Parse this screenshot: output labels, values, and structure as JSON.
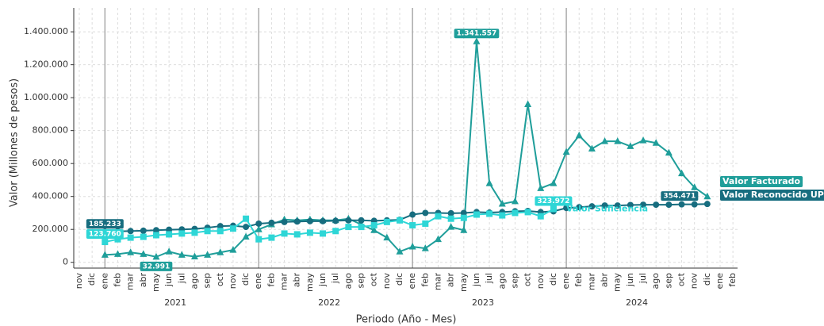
{
  "chart_data": {
    "type": "line",
    "y_label": "Valor (Millones de pesos)",
    "x_label": "Periodo (Año - Mes)",
    "categories": [
      "nov",
      "dic",
      "ene",
      "feb",
      "mar",
      "abr",
      "may",
      "jun",
      "jul",
      "ago",
      "sep",
      "oct",
      "nov",
      "dic",
      "ene",
      "feb",
      "mar",
      "abr",
      "may",
      "jun",
      "jul",
      "ago",
      "sep",
      "oct",
      "nov",
      "dic",
      "ene",
      "feb",
      "mar",
      "abr",
      "may",
      "jun",
      "jul",
      "ago",
      "sep",
      "oct",
      "nov",
      "dic",
      "ene",
      "feb",
      "mar",
      "abr",
      "may",
      "jun",
      "jul",
      "ago",
      "sep",
      "oct",
      "nov",
      "dic",
      "ene",
      "feb"
    ],
    "year_labels": [
      "2021",
      "2022",
      "2023",
      "2024"
    ],
    "ylim": [
      -35000,
      1545000
    ],
    "yticks": [
      0,
      {
        "value": 200000,
        "label": "200.000"
      },
      {
        "value": 400000,
        "label": "400.000"
      },
      {
        "value": 600000,
        "label": "600.000"
      },
      {
        "value": 800000,
        "label": "800.000"
      },
      {
        "value": 1000000,
        "label": "1.000.000"
      },
      {
        "value": 1200000,
        "label": "1.200.000"
      },
      {
        "value": 1400000,
        "label": "1.400.000"
      }
    ],
    "grid": true,
    "series": [
      {
        "name": "Valor Facturado",
        "color": "#1f9e9a",
        "marker": "triangle",
        "values": [
          null,
          null,
          45000,
          50000,
          60000,
          50000,
          32991,
          65000,
          45000,
          35000,
          45000,
          60000,
          75000,
          155000,
          200000,
          230000,
          260000,
          255000,
          260000,
          255000,
          255000,
          265000,
          230000,
          195000,
          150000,
          65000,
          95000,
          85000,
          140000,
          215000,
          195000,
          1341557,
          480000,
          355000,
          370000,
          960000,
          450000,
          480000,
          670000,
          770000,
          690000,
          735000,
          735000,
          705000,
          740000,
          725000,
          665000,
          540000,
          455000,
          400000,
          null,
          null
        ],
        "value_labels": [
          null,
          null,
          null,
          null,
          null,
          null,
          "32.991",
          null,
          null,
          null,
          null,
          null,
          null,
          null,
          null,
          null,
          null,
          null,
          null,
          null,
          null,
          null,
          null,
          null,
          null,
          null,
          null,
          null,
          null,
          null,
          null,
          "1.341.557",
          null,
          null,
          null,
          null,
          null,
          null,
          null,
          null,
          null,
          null,
          null,
          null,
          null,
          null,
          null,
          null,
          null,
          null,
          null,
          null
        ]
      },
      {
        "name": "Valor Reconocido UPC",
        "color": "#176d7f",
        "marker": "circle",
        "values": [
          null,
          null,
          185233,
          188000,
          190000,
          192000,
          195000,
          198000,
          200000,
          203000,
          210000,
          220000,
          222000,
          215000,
          235000,
          240000,
          245000,
          248000,
          250000,
          250000,
          252000,
          255000,
          255000,
          252000,
          255000,
          258000,
          290000,
          300000,
          300000,
          298000,
          300000,
          305000,
          302000,
          305000,
          310000,
          312000,
          305000,
          310000,
          330000,
          335000,
          340000,
          345000,
          345000,
          348000,
          350000,
          350000,
          350000,
          352000,
          352000,
          354471,
          null,
          null
        ],
        "value_labels": [
          null,
          null,
          "185.233",
          null,
          null,
          null,
          null,
          null,
          null,
          null,
          null,
          null,
          null,
          null,
          null,
          null,
          null,
          null,
          null,
          null,
          null,
          null,
          null,
          null,
          null,
          null,
          null,
          null,
          null,
          null,
          null,
          null,
          null,
          null,
          null,
          null,
          null,
          null,
          null,
          null,
          null,
          null,
          null,
          null,
          null,
          null,
          null,
          null,
          null,
          "354.471",
          null,
          null
        ]
      },
      {
        "name": "Valor Suficiencia",
        "color": "#2ed6d6",
        "marker": "square",
        "values": [
          null,
          null,
          123760,
          140000,
          150000,
          155000,
          165000,
          170000,
          175000,
          180000,
          190000,
          190000,
          205000,
          265000,
          140000,
          150000,
          175000,
          170000,
          180000,
          175000,
          190000,
          215000,
          215000,
          225000,
          245000,
          255000,
          225000,
          235000,
          280000,
          265000,
          270000,
          290000,
          295000,
          285000,
          300000,
          305000,
          280000,
          323972,
          null,
          null,
          null,
          null,
          null,
          null,
          null,
          null,
          null,
          null,
          null,
          null,
          null,
          null
        ],
        "value_labels": [
          null,
          null,
          "123.760",
          null,
          null,
          null,
          null,
          null,
          null,
          null,
          null,
          null,
          null,
          null,
          null,
          null,
          null,
          null,
          null,
          null,
          null,
          null,
          null,
          null,
          null,
          null,
          null,
          null,
          null,
          null,
          null,
          null,
          null,
          null,
          null,
          null,
          null,
          "323.972",
          null,
          null,
          null,
          null,
          null,
          null,
          null,
          null,
          null,
          null,
          null,
          null,
          null,
          null
        ]
      }
    ]
  }
}
